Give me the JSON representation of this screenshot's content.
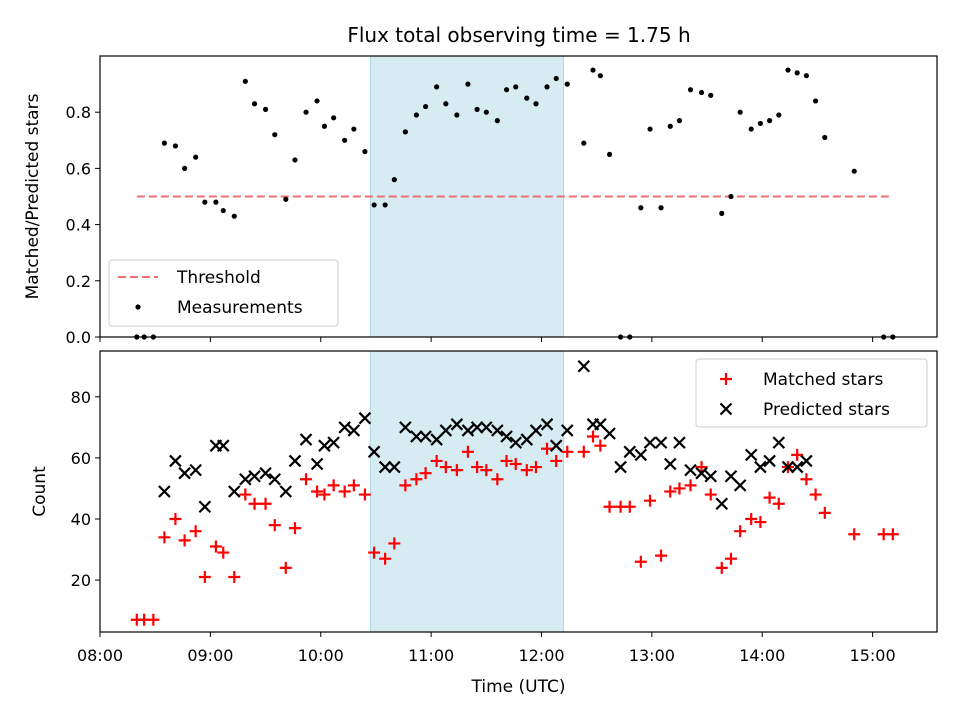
{
  "figure": {
    "title": "Flux total observing time = 1.75 h",
    "colors": {
      "threshold": "#f07070",
      "measurement": "#000000",
      "matched": "#ff0000",
      "predicted": "#000000",
      "band": "#add8e6"
    }
  },
  "chart_data": [
    {
      "type": "scatter",
      "title": "Flux total observing time = 1.75 h",
      "xlabel": "",
      "ylabel": "Matched/Predicted stars",
      "xlim": [
        "08:00",
        "15:35"
      ],
      "ylim": [
        0,
        1.0
      ],
      "xticks": [
        "08:00",
        "09:00",
        "10:00",
        "11:00",
        "12:00",
        "13:00",
        "14:00",
        "15:00"
      ],
      "yticks": [
        "0.0",
        "0.2",
        "0.4",
        "0.6",
        "0.8"
      ],
      "shaded_band": {
        "x_start": "10:27",
        "x_end": "12:12"
      },
      "legend_position": "lower left",
      "series": [
        {
          "name": "Threshold",
          "style": "dashed-line",
          "x": [
            "08:20",
            "15:10"
          ],
          "y": [
            0.5,
            0.5
          ]
        },
        {
          "name": "Measurements",
          "style": "dot",
          "x": [
            "08:20",
            "08:24",
            "08:29",
            "08:35",
            "08:41",
            "08:46",
            "08:52",
            "08:57",
            "09:03",
            "09:07",
            "09:13",
            "09:19",
            "09:24",
            "09:30",
            "09:35",
            "09:41",
            "09:46",
            "09:52",
            "09:58",
            "10:02",
            "10:07",
            "10:13",
            "10:18",
            "10:24",
            "10:29",
            "10:35",
            "10:40",
            "10:46",
            "10:52",
            "10:57",
            "11:03",
            "11:08",
            "11:14",
            "11:20",
            "11:25",
            "11:30",
            "11:36",
            "11:41",
            "11:46",
            "11:52",
            "11:57",
            "12:03",
            "12:08",
            "12:14",
            "12:23",
            "12:28",
            "12:32",
            "12:37",
            "12:43",
            "12:48",
            "12:54",
            "12:59",
            "13:05",
            "13:10",
            "13:15",
            "13:21",
            "13:27",
            "13:32",
            "13:38",
            "13:43",
            "13:48",
            "13:54",
            "13:59",
            "14:04",
            "14:09",
            "14:14",
            "14:19",
            "14:24",
            "14:29",
            "14:34",
            "14:50",
            "15:06",
            "15:11"
          ],
          "y": [
            0.0,
            0.0,
            0.0,
            0.69,
            0.68,
            0.6,
            0.64,
            0.48,
            0.48,
            0.45,
            0.43,
            0.91,
            0.83,
            0.81,
            0.72,
            0.49,
            0.63,
            0.8,
            0.84,
            0.75,
            0.78,
            0.7,
            0.74,
            0.66,
            0.47,
            0.47,
            0.56,
            0.73,
            0.79,
            0.82,
            0.89,
            0.83,
            0.79,
            0.9,
            0.81,
            0.8,
            0.77,
            0.88,
            0.89,
            0.85,
            0.83,
            0.89,
            0.92,
            0.9,
            0.69,
            0.95,
            0.93,
            0.65,
            0.0,
            0.0,
            0.46,
            0.74,
            0.46,
            0.75,
            0.77,
            0.88,
            0.87,
            0.86,
            0.44,
            0.5,
            0.8,
            0.74,
            0.76,
            0.77,
            0.79,
            0.95,
            0.94,
            0.93,
            0.84,
            0.71,
            0.59,
            0.0,
            0.0
          ]
        }
      ]
    },
    {
      "type": "scatter",
      "xlabel": "Time (UTC)",
      "ylabel": "Count",
      "xlim": [
        "08:00",
        "15:35"
      ],
      "ylim": [
        3,
        95
      ],
      "xticks": [
        "08:00",
        "09:00",
        "10:00",
        "11:00",
        "12:00",
        "13:00",
        "14:00",
        "15:00"
      ],
      "yticks": [
        "20",
        "40",
        "60",
        "80"
      ],
      "shaded_band": {
        "x_start": "10:27",
        "x_end": "12:12"
      },
      "legend_position": "upper right",
      "series": [
        {
          "name": "Matched stars",
          "marker": "+",
          "x": [
            "08:20",
            "08:24",
            "08:29",
            "08:35",
            "08:41",
            "08:46",
            "08:52",
            "08:57",
            "09:03",
            "09:07",
            "09:13",
            "09:19",
            "09:24",
            "09:30",
            "09:35",
            "09:41",
            "09:46",
            "09:52",
            "09:58",
            "10:02",
            "10:07",
            "10:13",
            "10:18",
            "10:24",
            "10:29",
            "10:35",
            "10:40",
            "10:46",
            "10:52",
            "10:57",
            "11:03",
            "11:08",
            "11:14",
            "11:20",
            "11:25",
            "11:30",
            "11:36",
            "11:41",
            "11:46",
            "11:52",
            "11:57",
            "12:03",
            "12:08",
            "12:14",
            "12:23",
            "12:28",
            "12:32",
            "12:37",
            "12:43",
            "12:48",
            "12:54",
            "12:59",
            "13:05",
            "13:10",
            "13:15",
            "13:21",
            "13:27",
            "13:32",
            "13:38",
            "13:43",
            "13:48",
            "13:54",
            "13:59",
            "14:04",
            "14:09",
            "14:14",
            "14:19",
            "14:24",
            "14:29",
            "14:34",
            "14:50",
            "15:06",
            "15:11"
          ],
          "y": [
            7,
            7,
            7,
            34,
            40,
            33,
            36,
            21,
            31,
            29,
            21,
            48,
            45,
            45,
            38,
            24,
            37,
            53,
            49,
            48,
            51,
            49,
            51,
            48,
            29,
            27,
            32,
            51,
            53,
            55,
            59,
            57,
            56,
            62,
            57,
            56,
            53,
            59,
            58,
            56,
            57,
            63,
            59,
            62,
            62,
            67,
            64,
            44,
            44,
            44,
            26,
            46,
            28,
            49,
            50,
            51,
            57,
            48,
            24,
            27,
            36,
            40,
            39,
            47,
            45,
            57,
            61,
            53,
            48,
            42,
            35,
            35,
            35
          ]
        },
        {
          "name": "Predicted stars",
          "marker": "x",
          "x": [
            "08:35",
            "08:41",
            "08:46",
            "08:52",
            "08:57",
            "09:03",
            "09:07",
            "09:13",
            "09:19",
            "09:24",
            "09:30",
            "09:35",
            "09:41",
            "09:46",
            "09:52",
            "09:58",
            "10:02",
            "10:07",
            "10:13",
            "10:18",
            "10:24",
            "10:29",
            "10:35",
            "10:40",
            "10:46",
            "10:52",
            "10:57",
            "11:03",
            "11:08",
            "11:14",
            "11:20",
            "11:25",
            "11:30",
            "11:36",
            "11:41",
            "11:46",
            "11:52",
            "11:57",
            "12:03",
            "12:08",
            "12:14",
            "12:23",
            "12:28",
            "12:32",
            "12:37",
            "12:43",
            "12:48",
            "12:54",
            "12:59",
            "13:05",
            "13:10",
            "13:15",
            "13:21",
            "13:27",
            "13:32",
            "13:38",
            "13:43",
            "13:48",
            "13:54",
            "13:59",
            "14:04",
            "14:09",
            "14:14",
            "14:19",
            "14:24"
          ],
          "y": [
            49,
            59,
            55,
            56,
            44,
            64,
            64,
            49,
            53,
            54,
            55,
            53,
            49,
            59,
            66,
            58,
            64,
            65,
            70,
            69,
            73,
            62,
            57,
            57,
            70,
            67,
            67,
            66,
            69,
            71,
            69,
            70,
            70,
            69,
            67,
            65,
            66,
            69,
            71,
            64,
            69,
            90,
            71,
            71,
            68,
            57,
            62,
            61,
            65,
            65,
            58,
            65,
            56,
            55,
            54,
            45,
            54,
            51,
            61,
            57,
            59,
            65,
            57,
            57,
            59
          ]
        }
      ]
    }
  ]
}
